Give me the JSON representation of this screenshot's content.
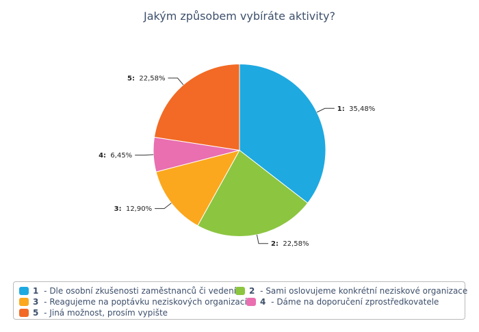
{
  "chart_data": {
    "type": "pie",
    "title": "Jakým způsobem vybíráte aktivity?",
    "slices": [
      {
        "key": "1",
        "label": "Dle osobní zkušenosti zaměstnanců či vedení",
        "value": 35.48,
        "display": "35,48%",
        "color": "#1ea9e1"
      },
      {
        "key": "2",
        "label": "Sami oslovujeme konkrétní neziskové organizace",
        "value": 22.58,
        "display": "22,58%",
        "color": "#8cc540"
      },
      {
        "key": "3",
        "label": "Reagujeme na poptávku neziskových organizací",
        "value": 12.9,
        "display": "12,90%",
        "color": "#fba81e"
      },
      {
        "key": "4",
        "label": "Dáme na doporučení zprostředkovatele",
        "value": 6.45,
        "display": "6,45%",
        "color": "#e96fb0"
      },
      {
        "key": "5",
        "label": "Jiná možnost, prosím vypište",
        "value": 22.58,
        "display": "22,58%",
        "color": "#f26a25"
      }
    ],
    "legend_position": "bottom"
  }
}
